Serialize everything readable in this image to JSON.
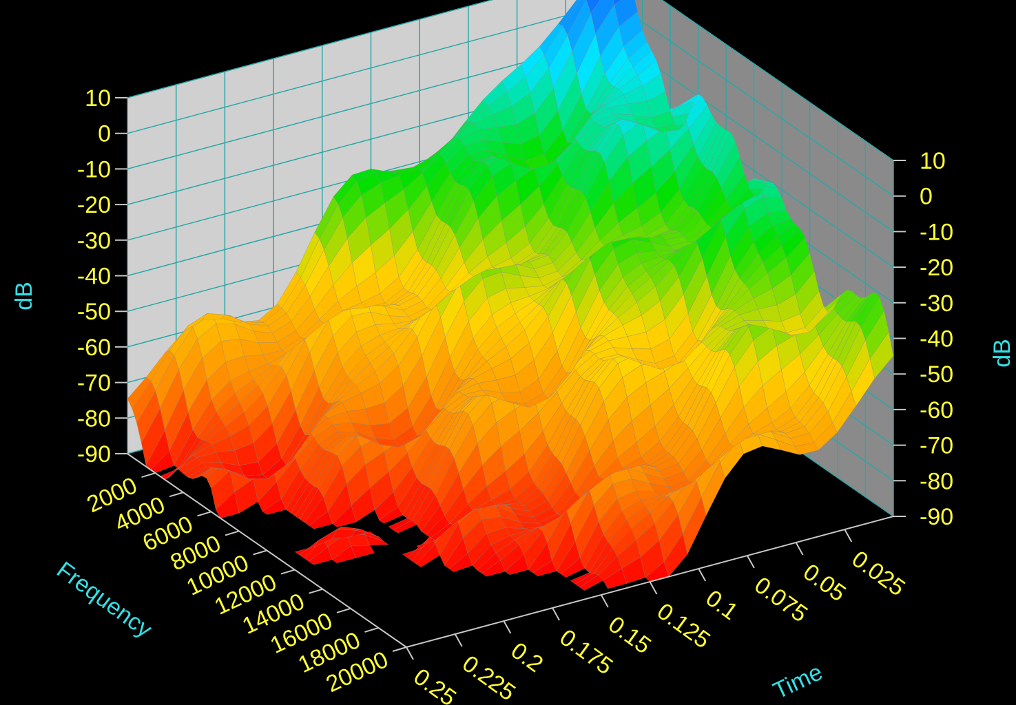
{
  "chart_data": {
    "type": "waterfall-3d-surface",
    "title": "",
    "z_axis": {
      "label": "dB",
      "ticks": [
        "10",
        "0",
        "-10",
        "-20",
        "-30",
        "-40",
        "-50",
        "-60",
        "-70",
        "-80",
        "-90"
      ],
      "range": [
        -90,
        10
      ]
    },
    "frequency_axis": {
      "label": "Frequency",
      "ticks": [
        "2000",
        "4000",
        "6000",
        "8000",
        "10000",
        "12000",
        "14000",
        "16000",
        "18000",
        "20000"
      ],
      "range": [
        0,
        20000
      ]
    },
    "time_axis": {
      "label": "Time",
      "ticks": [
        "0.025",
        "0.05",
        "0.075",
        "0.1",
        "0.125",
        "0.15",
        "0.175",
        "0.2",
        "0.225",
        "0.25"
      ],
      "range": [
        0,
        0.25
      ]
    },
    "walls": {
      "left": "#d0d0d0",
      "right": "#8a8a8a",
      "grid": "#2aa7a7"
    },
    "colormap": [
      "#ff0000",
      "#ff8c00",
      "#ffd700",
      "#00e000",
      "#00e5ff",
      "#1060ff"
    ],
    "peak_db_by_frequency_at_t0": [
      {
        "freq": 0,
        "db": 5
      },
      {
        "freq": 2000,
        "db": -5
      },
      {
        "freq": 4000,
        "db": -10
      },
      {
        "freq": 6000,
        "db": -12
      },
      {
        "freq": 8000,
        "db": -20
      },
      {
        "freq": 10000,
        "db": -22
      },
      {
        "freq": 12000,
        "db": -25
      },
      {
        "freq": 14000,
        "db": -32
      },
      {
        "freq": 16000,
        "db": -35
      },
      {
        "freq": 18000,
        "db": -40
      },
      {
        "freq": 20000,
        "db": -45
      }
    ],
    "decay_db_per_second": 320
  }
}
